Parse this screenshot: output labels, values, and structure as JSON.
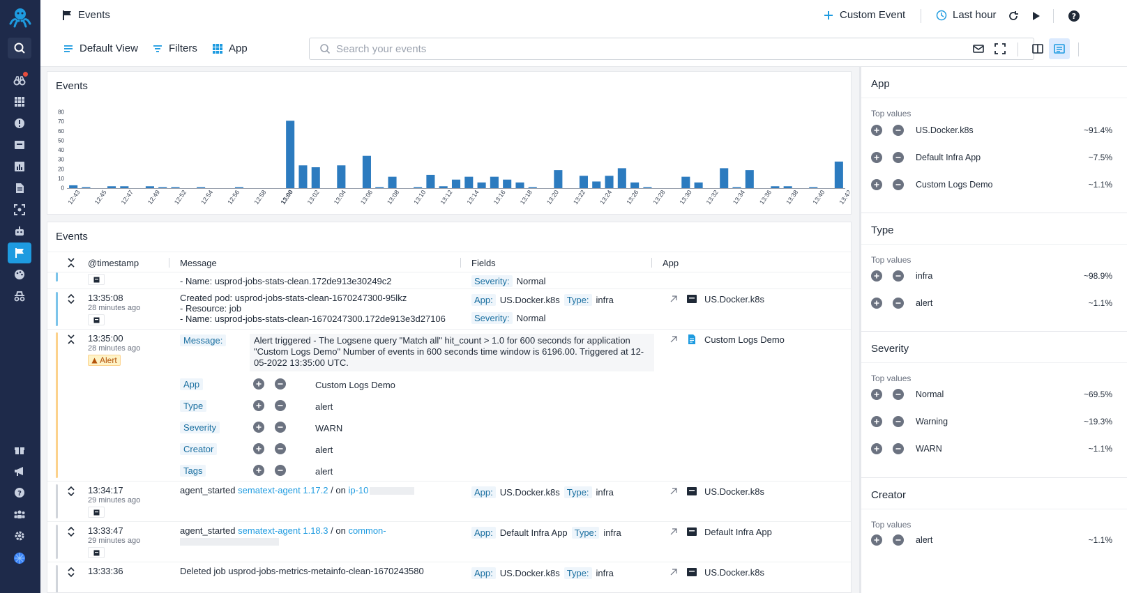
{
  "header": {
    "title": "Events",
    "custom_event_label": "Custom Event",
    "time_range_label": "Last hour"
  },
  "toolbar": {
    "default_view_label": "Default View",
    "filters_label": "Filters",
    "app_label": "App",
    "search_placeholder": "Search your events"
  },
  "chart_data": {
    "type": "bar",
    "title": "Events",
    "ylim": [
      0,
      80
    ],
    "yticks": [
      0,
      10,
      20,
      30,
      40,
      50,
      60,
      70,
      80
    ],
    "tick_labels": [
      "12:43",
      "12:45",
      "12:47",
      "12:49",
      "12:52",
      "12:54",
      "12:56",
      "12:58",
      "13:00",
      "13:02",
      "13:04",
      "13:06",
      "13:08",
      "13:10",
      "13:12",
      "13:14",
      "13:16",
      "13:18",
      "13:20",
      "13:22",
      "13:24",
      "13:26",
      "13:28",
      "13:30",
      "13:32",
      "13:34",
      "13:36",
      "13:38",
      "13:40",
      "13:42"
    ],
    "values": [
      3,
      1,
      0,
      2,
      2,
      0,
      2,
      1,
      1,
      0,
      1,
      0,
      0,
      1,
      0,
      0,
      0,
      71,
      24,
      22,
      0,
      24,
      0,
      34,
      1,
      12,
      0,
      1,
      14,
      2,
      9,
      12,
      6,
      12,
      9,
      6,
      1,
      0,
      19,
      0,
      13,
      7,
      13,
      21,
      6,
      1,
      0,
      0,
      12,
      6,
      0,
      21,
      1,
      19,
      0,
      2,
      2,
      0,
      1,
      0,
      28
    ]
  },
  "events_table": {
    "title": "Events",
    "columns": {
      "timestamp": "@timestamp",
      "message": "Message",
      "fields": "Fields",
      "app": "App"
    },
    "rows": [
      {
        "msg_lines": [
          "- Name: usprod-jobs-stats-clean.172de913e30249c2"
        ],
        "field_severity_key": "Severity:",
        "field_severity_val": "Normal"
      },
      {
        "time": "13:35:08",
        "ago": "28 minutes ago",
        "msg_lines": [
          "Created pod: usprod-jobs-stats-clean-1670247300-95lkz",
          "- Resource: job",
          "- Name: usprod-jobs-stats-clean-1670247300.172de913e3d27106"
        ],
        "app_key": "App:",
        "app_val": "US.Docker.k8s",
        "type_key": "Type:",
        "type_val": "infra",
        "sev_key": "Severity:",
        "sev_val": "Normal",
        "app_name": "US.Docker.k8s"
      },
      {
        "time": "13:35:00",
        "ago": "28 minutes ago",
        "badge": "Alert",
        "message_key": "Message:",
        "message_text": "Alert triggered - The Logsene query \"Match all\" hit_count > 1.0 for 600 seconds for application \"Custom Logs Demo\" Number of events in 600 seconds time window is 6196.00. Triggered at 12-05-2022 13:35:00 UTC.",
        "app_name": "Custom Logs Demo",
        "details": [
          {
            "key": "App",
            "val": "Custom Logs Demo"
          },
          {
            "key": "Type",
            "val": "alert"
          },
          {
            "key": "Severity",
            "val": "WARN"
          },
          {
            "key": "Creator",
            "val": "alert"
          },
          {
            "key": "Tags",
            "val": "alert"
          }
        ]
      },
      {
        "time": "13:34:17",
        "ago": "29 minutes ago",
        "msg_prefix": "agent_started",
        "msg_link": "sematext-agent 1.17.2",
        "msg_mid": "/ on",
        "msg_link2": "ip-10",
        "app_key": "App:",
        "app_val": "US.Docker.k8s",
        "type_key": "Type:",
        "type_val": "infra",
        "app_name": "US.Docker.k8s"
      },
      {
        "time": "13:33:47",
        "ago": "29 minutes ago",
        "msg_prefix": "agent_started",
        "msg_link": "sematext-agent 1.18.3",
        "msg_mid": "/ on",
        "msg_link2": "common-",
        "app_key": "App:",
        "app_val": "Default Infra App",
        "type_key": "Type:",
        "type_val": "infra",
        "app_name": "Default Infra App"
      },
      {
        "time": "13:33:36",
        "msg_lines": [
          "Deleted job usprod-jobs-metrics-metainfo-clean-1670243580"
        ],
        "app_key": "App:",
        "app_val": "US.Docker.k8s",
        "type_key": "Type:",
        "type_val": "infra",
        "app_name": "US.Docker.k8s"
      }
    ]
  },
  "sidebar": {
    "top_values_label": "Top values",
    "sections": [
      {
        "title": "App",
        "values": [
          {
            "name": "US.Docker.k8s",
            "pct": "~91.4%"
          },
          {
            "name": "Default Infra App",
            "pct": "~7.5%"
          },
          {
            "name": "Custom Logs Demo",
            "pct": "~1.1%"
          }
        ]
      },
      {
        "title": "Type",
        "values": [
          {
            "name": "infra",
            "pct": "~98.9%"
          },
          {
            "name": "alert",
            "pct": "~1.1%"
          }
        ]
      },
      {
        "title": "Severity",
        "values": [
          {
            "name": "Normal",
            "pct": "~69.5%"
          },
          {
            "name": "Warning",
            "pct": "~19.3%"
          },
          {
            "name": "WARN",
            "pct": "~1.1%"
          }
        ]
      },
      {
        "title": "Creator",
        "values": [
          {
            "name": "alert",
            "pct": "~1.1%"
          }
        ]
      }
    ]
  }
}
